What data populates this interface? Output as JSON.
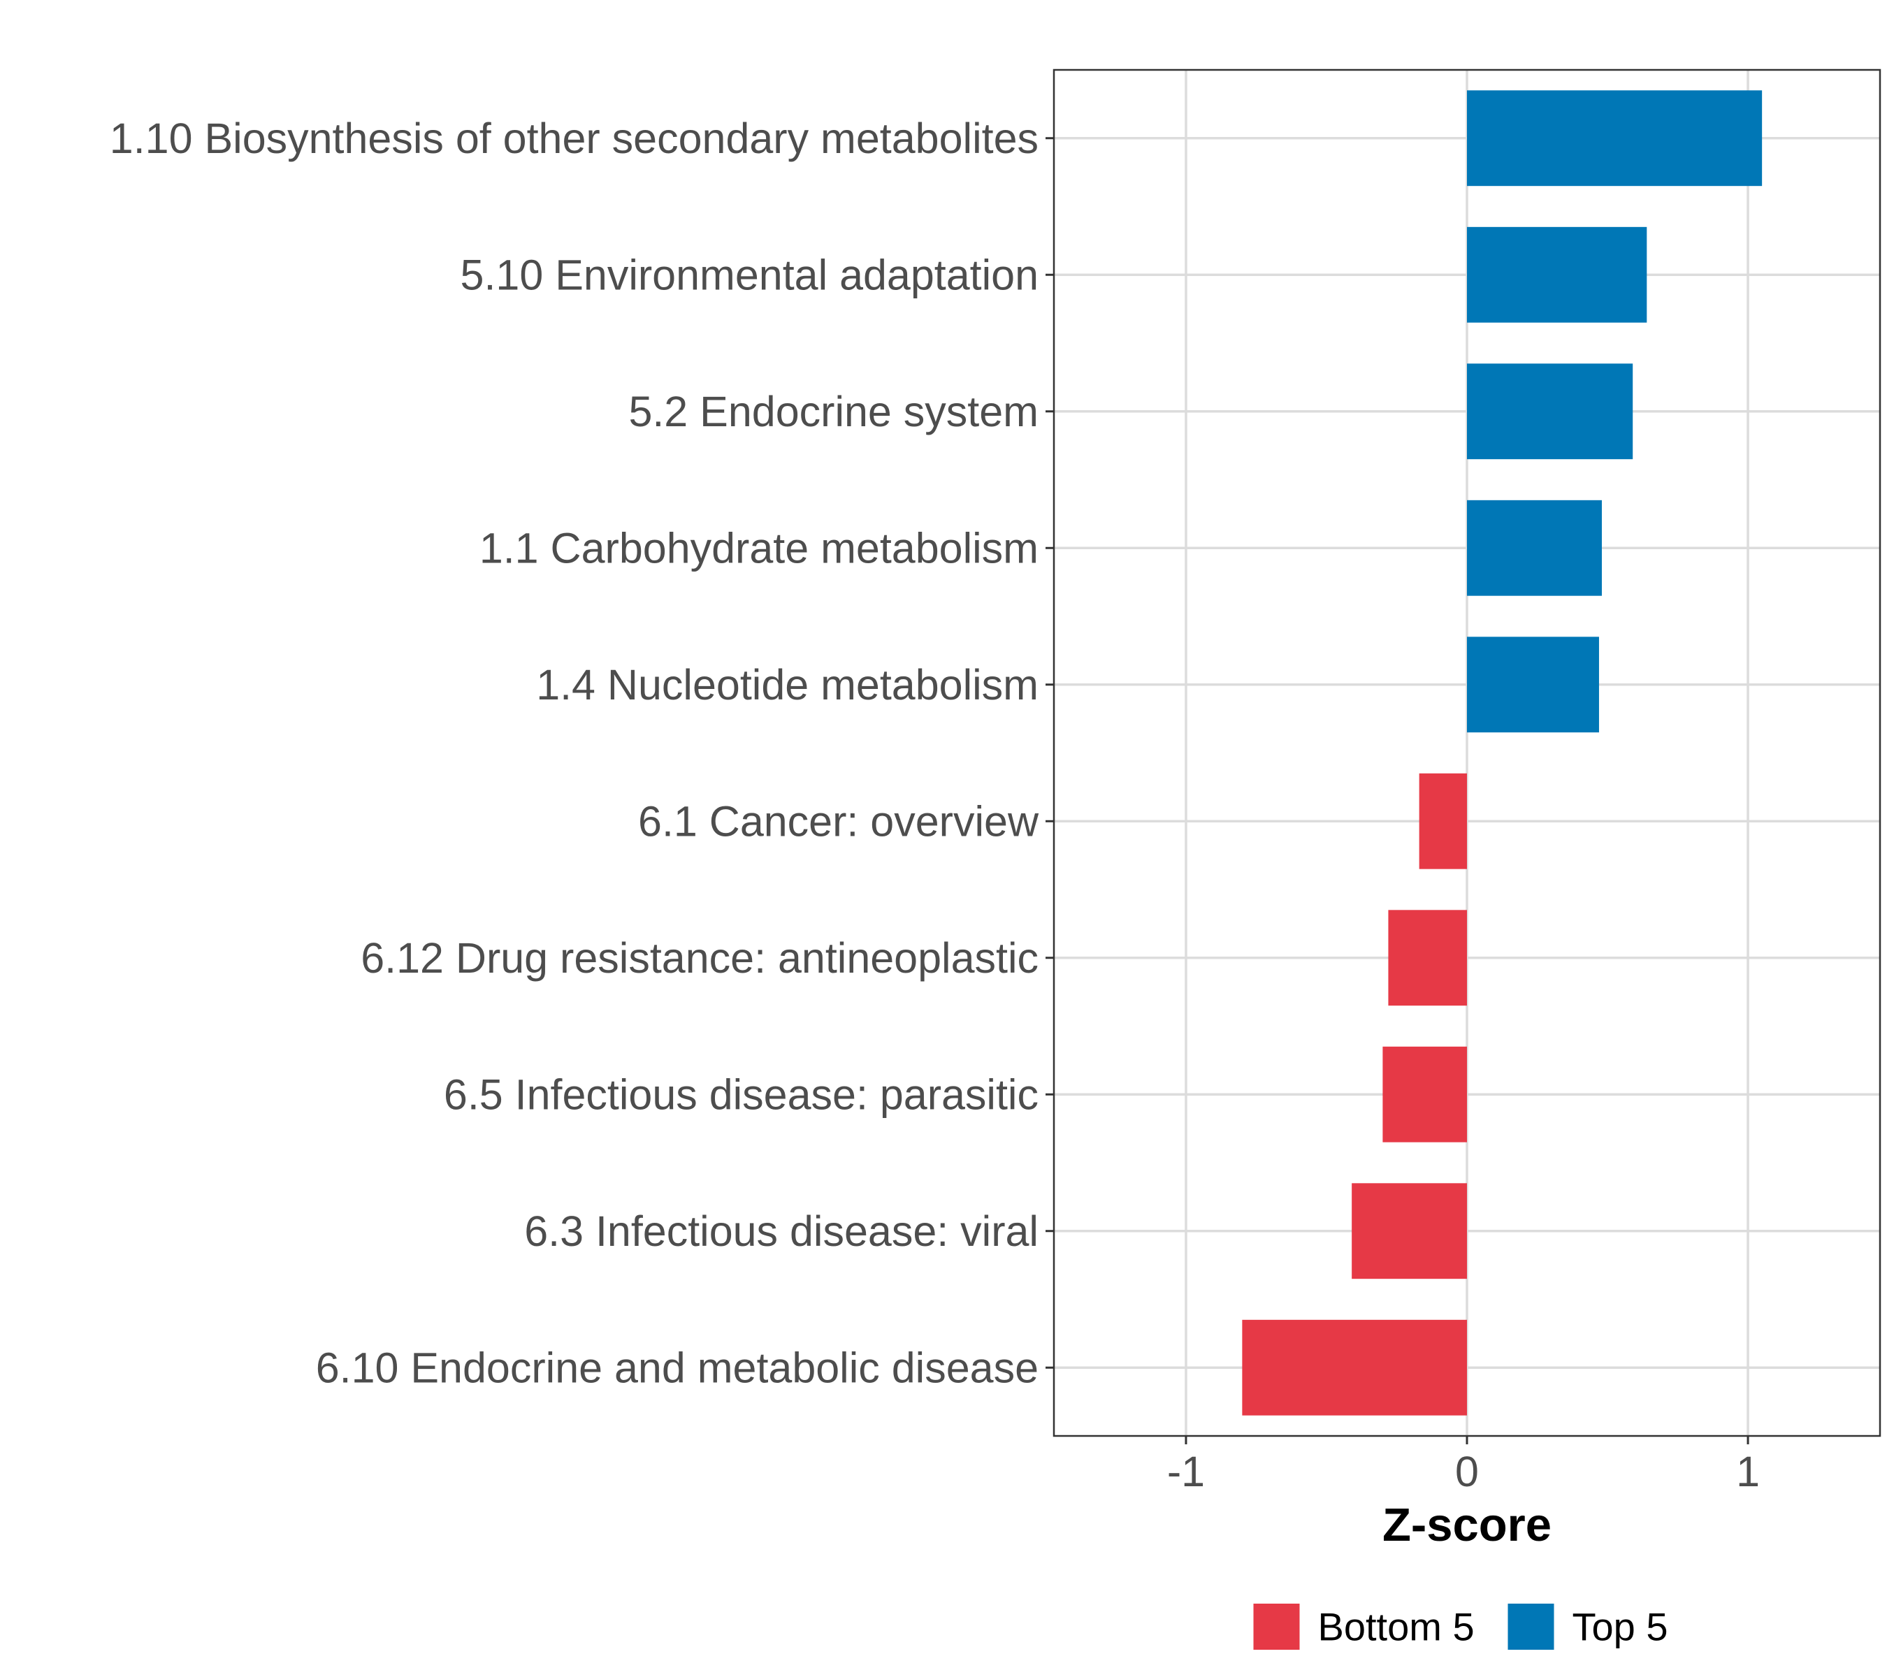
{
  "chart_data": {
    "type": "bar",
    "orientation": "horizontal",
    "title": "",
    "xlabel": "Z-score",
    "ylabel": "",
    "xlim": [
      -1.47,
      1.47
    ],
    "xticks": [
      -1,
      0,
      1
    ],
    "xtick_labels": [
      "-1",
      "0",
      "1"
    ],
    "grid": true,
    "legend_position": "bottom",
    "categories": [
      "1.10 Biosynthesis of other secondary metabolites",
      "5.10 Environmental adaptation",
      "5.2 Endocrine system",
      "1.1 Carbohydrate metabolism",
      "1.4 Nucleotide metabolism",
      "6.1 Cancer: overview",
      "6.12 Drug resistance: antineoplastic",
      "6.5 Infectious disease: parasitic",
      "6.3 Infectious disease: viral",
      "6.10 Endocrine and metabolic disease"
    ],
    "values": [
      1.05,
      0.64,
      0.59,
      0.48,
      0.47,
      -0.17,
      -0.28,
      -0.3,
      -0.41,
      -0.8
    ],
    "groups": [
      "Top 5",
      "Top 5",
      "Top 5",
      "Top 5",
      "Top 5",
      "Bottom 5",
      "Bottom 5",
      "Bottom 5",
      "Bottom 5",
      "Bottom 5"
    ],
    "legend": [
      {
        "name": "Bottom 5",
        "color": "#E63946"
      },
      {
        "name": "Top 5",
        "color": "#0077B6"
      }
    ]
  }
}
